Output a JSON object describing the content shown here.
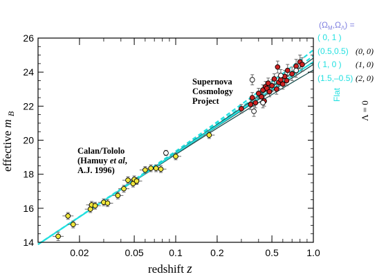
{
  "chart_data": {
    "type": "scatter",
    "xscale": "log",
    "xlim": [
      0.01,
      1.0
    ],
    "ylim": [
      14,
      26
    ],
    "xlabel_text": "redshift",
    "xlabel_var": "z",
    "ylabel_text": "effective",
    "ylabel_var": "m",
    "ylabel_sub": "B",
    "x_ticks": [
      0.02,
      0.05,
      0.1,
      0.2,
      0.5,
      1.0
    ],
    "x_tick_labels": [
      "0.02",
      "0.05",
      "0.1",
      "0.2",
      "0.5",
      "1.0"
    ],
    "y_ticks": [
      14,
      16,
      18,
      20,
      22,
      24,
      26
    ],
    "y_tick_labels": [
      "14",
      "16",
      "18",
      "20",
      "22",
      "24",
      "26"
    ],
    "annotations": {
      "calan": [
        "Calan/Tololo",
        "(Hamuy et al,",
        "A.J. 1996)"
      ],
      "scp": [
        "Supernova",
        "Cosmology",
        "Project"
      ]
    },
    "legend": {
      "header": "(ΩM,ΩΛ) =",
      "models": [
        "( 0,   1 )",
        "(0.5,0.5)",
        "( 1,    0 )",
        "(1.5,–0.5)"
      ],
      "lambda_zero_models": [
        "(0, 0)",
        "(1, 0)",
        "(2, 0)"
      ],
      "flat_label": "Flat",
      "lambda_label": "Λ = 0"
    },
    "colors": {
      "flat_model": "#22e0e0",
      "lambda_zero_model": "#1a5050",
      "calan_points": "#f0e63c",
      "scp_points": "#cc2222",
      "open_points": "#ffffff",
      "legend_header": "#8080e0"
    },
    "series": [
      {
        "name": "Calan/Tololo",
        "points": [
          {
            "z": 0.014,
            "m": 14.35,
            "yerr": 0.25
          },
          {
            "z": 0.0165,
            "m": 15.55,
            "yerr": 0.2
          },
          {
            "z": 0.018,
            "m": 15.05,
            "yerr": 0.2
          },
          {
            "z": 0.024,
            "m": 15.95,
            "yerr": 0.2
          },
          {
            "z": 0.0245,
            "m": 16.2,
            "yerr": 0.2
          },
          {
            "z": 0.026,
            "m": 16.15,
            "yerr": 0.2
          },
          {
            "z": 0.03,
            "m": 16.35,
            "yerr": 0.2
          },
          {
            "z": 0.032,
            "m": 16.3,
            "yerr": 0.2
          },
          {
            "z": 0.038,
            "m": 16.75,
            "yerr": 0.2
          },
          {
            "z": 0.042,
            "m": 17.15,
            "yerr": 0.2
          },
          {
            "z": 0.045,
            "m": 17.65,
            "yerr": 0.2
          },
          {
            "z": 0.049,
            "m": 17.45,
            "yerr": 0.2
          },
          {
            "z": 0.05,
            "m": 17.7,
            "yerr": 0.2
          },
          {
            "z": 0.052,
            "m": 17.6,
            "yerr": 0.2
          },
          {
            "z": 0.06,
            "m": 18.25,
            "yerr": 0.2
          },
          {
            "z": 0.066,
            "m": 18.35,
            "yerr": 0.2
          },
          {
            "z": 0.072,
            "m": 18.35,
            "yerr": 0.2
          },
          {
            "z": 0.078,
            "m": 18.3,
            "yerr": 0.2
          },
          {
            "z": 0.1,
            "m": 19.05,
            "yerr": 0.2
          },
          {
            "z": 0.175,
            "m": 20.3,
            "yerr": 0.2
          }
        ]
      },
      {
        "name": "Supernova Cosmology Project",
        "points": [
          {
            "z": 0.3,
            "m": 21.85,
            "yerr": 0.25
          },
          {
            "z": 0.35,
            "m": 22.1,
            "yerr": 0.3
          },
          {
            "z": 0.36,
            "m": 22.5,
            "yerr": 0.3
          },
          {
            "z": 0.38,
            "m": 22.2,
            "yerr": 0.3
          },
          {
            "z": 0.4,
            "m": 22.75,
            "yerr": 0.3
          },
          {
            "z": 0.42,
            "m": 22.55,
            "yerr": 0.35
          },
          {
            "z": 0.43,
            "m": 22.95,
            "yerr": 0.3
          },
          {
            "z": 0.44,
            "m": 22.3,
            "yerr": 0.3
          },
          {
            "z": 0.45,
            "m": 23.15,
            "yerr": 0.3
          },
          {
            "z": 0.46,
            "m": 23.05,
            "yerr": 0.35
          },
          {
            "z": 0.47,
            "m": 23.35,
            "yerr": 0.3
          },
          {
            "z": 0.48,
            "m": 22.85,
            "yerr": 0.3
          },
          {
            "z": 0.5,
            "m": 23.2,
            "yerr": 0.35
          },
          {
            "z": 0.52,
            "m": 23.6,
            "yerr": 0.3
          },
          {
            "z": 0.54,
            "m": 23.0,
            "yerr": 0.3
          },
          {
            "z": 0.56,
            "m": 23.4,
            "yerr": 0.35
          },
          {
            "z": 0.58,
            "m": 23.55,
            "yerr": 0.3
          },
          {
            "z": 0.6,
            "m": 23.3,
            "yerr": 0.3
          },
          {
            "z": 0.62,
            "m": 23.75,
            "yerr": 0.35
          },
          {
            "z": 0.64,
            "m": 23.5,
            "yerr": 0.3
          },
          {
            "z": 0.65,
            "m": 24.1,
            "yerr": 0.35
          },
          {
            "z": 0.7,
            "m": 23.9,
            "yerr": 0.4
          },
          {
            "z": 0.75,
            "m": 24.35,
            "yerr": 0.4
          },
          {
            "z": 0.8,
            "m": 24.6,
            "yerr": 0.4
          },
          {
            "z": 0.83,
            "m": 24.45,
            "yerr": 0.4
          },
          {
            "z": 0.55,
            "m": 24.3,
            "yerr": 0.35
          }
        ]
      },
      {
        "name": "open",
        "points": [
          {
            "z": 0.085,
            "m": 19.25,
            "yerr": 0.15
          },
          {
            "z": 0.36,
            "m": 23.55,
            "yerr": 0.3
          },
          {
            "z": 0.37,
            "m": 21.7,
            "yerr": 0.3
          },
          {
            "z": 0.43,
            "m": 22.2,
            "yerr": 0.3
          },
          {
            "z": 0.58,
            "m": 23.8,
            "yerr": 0.35
          },
          {
            "z": 0.75,
            "m": 24.1,
            "yerr": 0.4
          }
        ]
      }
    ],
    "model_lines": [
      {
        "group": "flat",
        "style": "dashed",
        "m_at_0_01": 13.88,
        "m_at_1_0": 25.3
      },
      {
        "group": "flat",
        "style": "dashed",
        "m_at_0_01": 13.88,
        "m_at_1_0": 24.95
      },
      {
        "group": "lambda_zero",
        "style": "solid",
        "m_at_0_01": 13.88,
        "m_at_1_0": 24.82
      },
      {
        "group": "lambda_zero",
        "style": "solid",
        "m_at_0_01": 13.88,
        "m_at_1_0": 24.45
      },
      {
        "group": "lambda_zero",
        "style": "solid",
        "m_at_0_01": 13.88,
        "m_at_1_0": 24.12
      },
      {
        "group": "flat",
        "style": "solid",
        "m_at_0_01": 13.88,
        "m_at_1_0": 24.6
      }
    ]
  }
}
